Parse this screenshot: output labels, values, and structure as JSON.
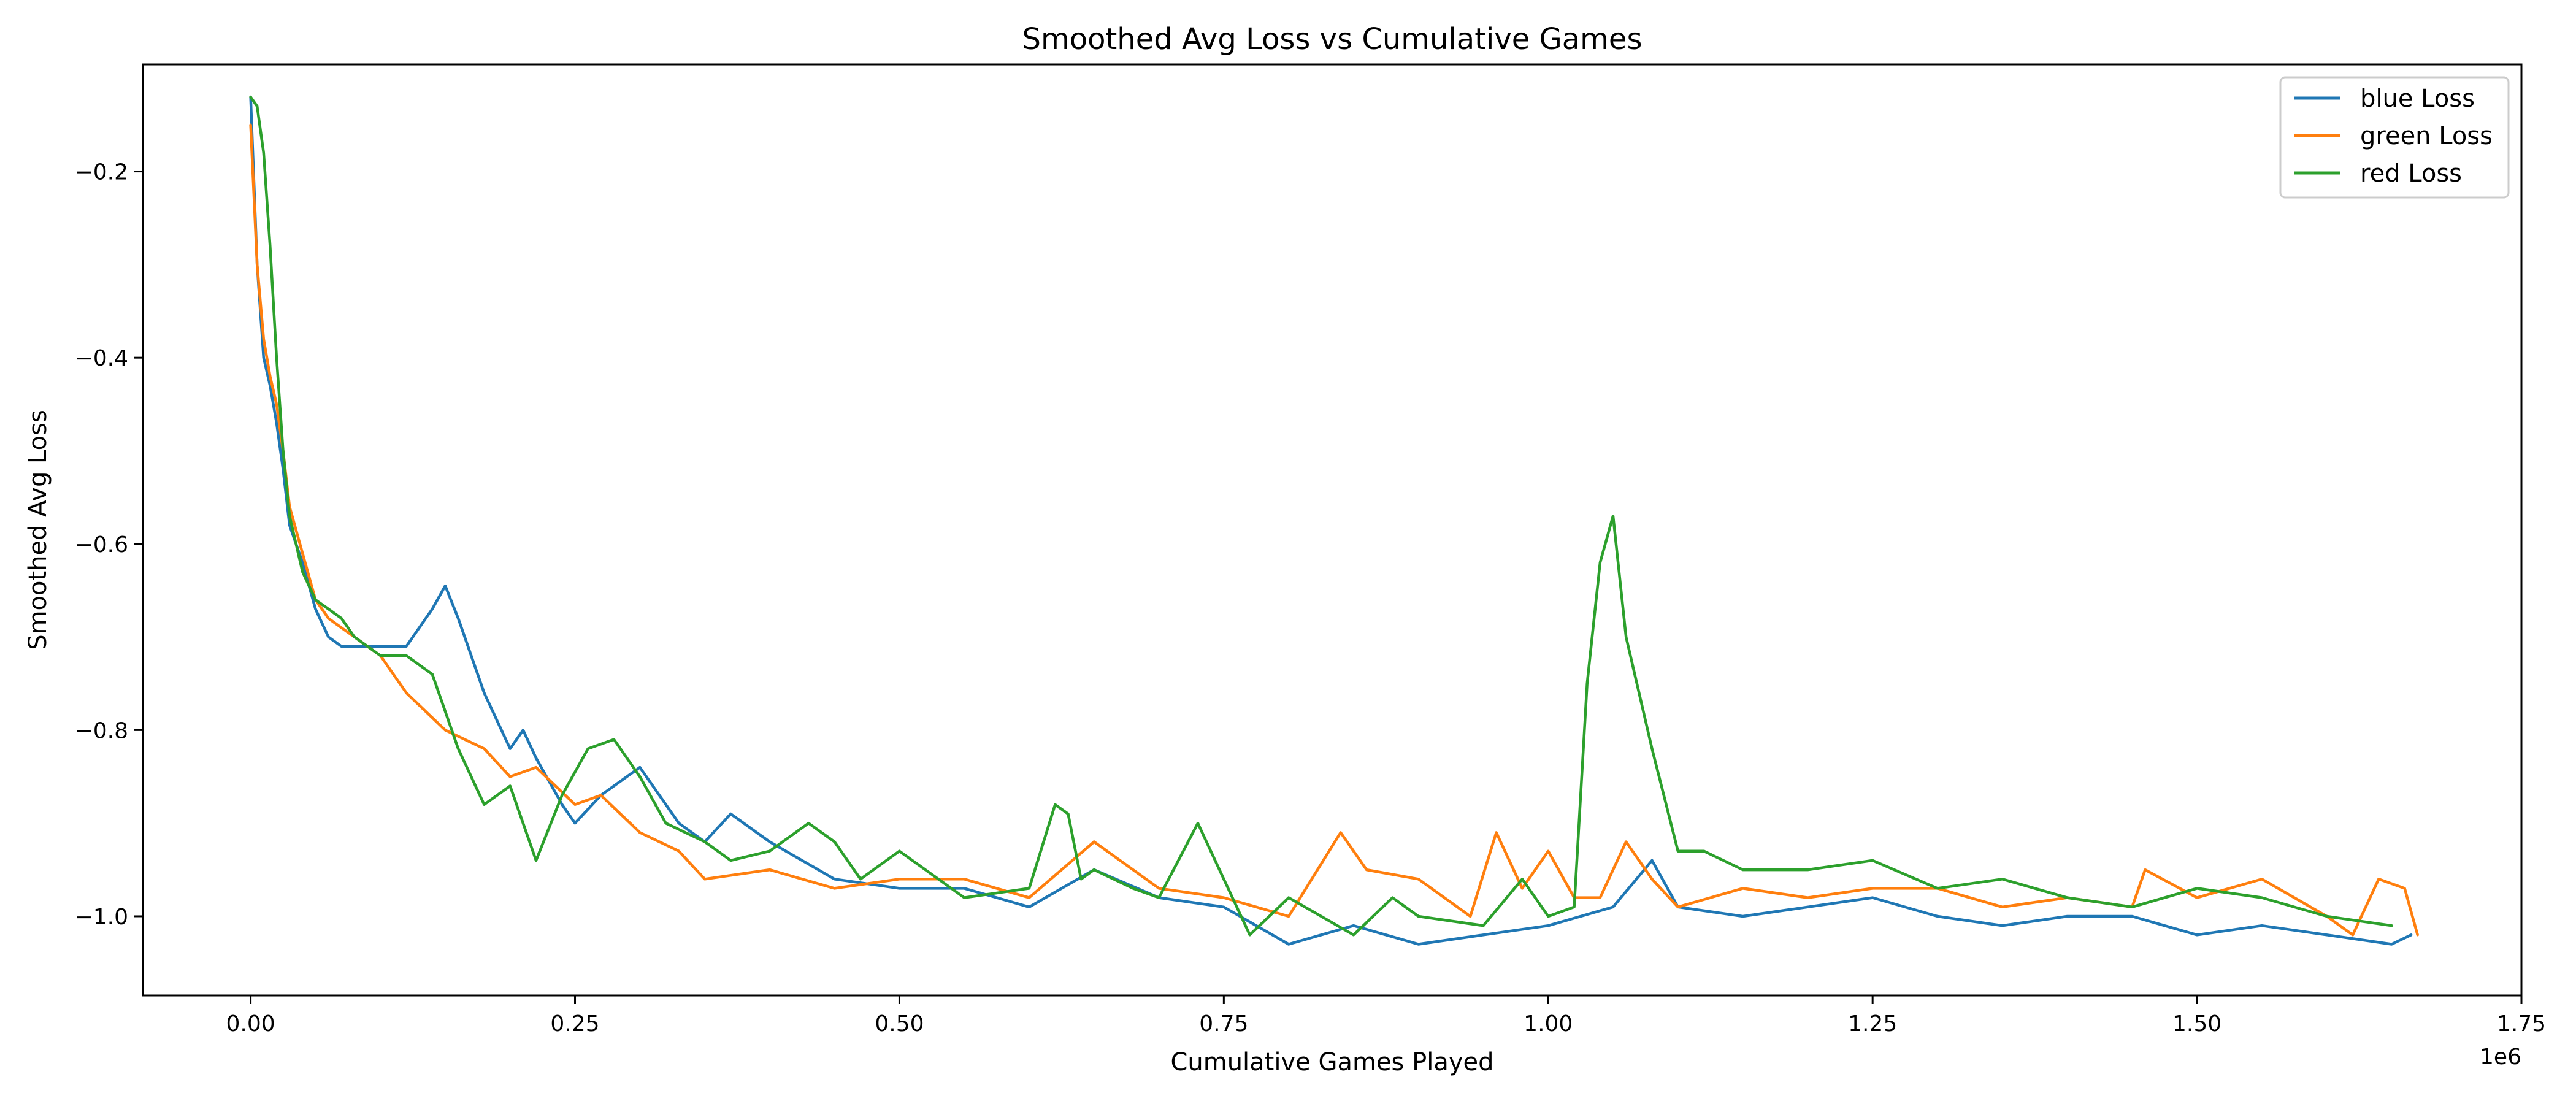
{
  "chart_data": {
    "type": "line",
    "title": "Smoothed Avg Loss vs Cumulative Games",
    "xlabel": "Cumulative Games Played",
    "ylabel": "Smoothed Avg Loss",
    "x_offset_label": "1e6",
    "xlim": [
      -0.083,
      1.75
    ],
    "ylim": [
      -1.085,
      -0.085
    ],
    "x_ticks": [
      0.0,
      0.25,
      0.5,
      0.75,
      1.0,
      1.25,
      1.5,
      1.75
    ],
    "x_tick_labels": [
      "0.00",
      "0.25",
      "0.50",
      "0.75",
      "1.00",
      "1.25",
      "1.50",
      "1.75"
    ],
    "y_ticks": [
      -0.2,
      -0.4,
      -0.6,
      -0.8,
      -1.0
    ],
    "y_tick_labels": [
      "−0.2",
      "−0.4",
      "−0.6",
      "−0.8",
      "−1.0"
    ],
    "grid": false,
    "legend_position": "top-right",
    "series": [
      {
        "name": "blue Loss",
        "color": "#1f77b4",
        "x": [
          0.0,
          0.005,
          0.01,
          0.015,
          0.02,
          0.025,
          0.03,
          0.04,
          0.05,
          0.06,
          0.07,
          0.08,
          0.1,
          0.12,
          0.13,
          0.14,
          0.15,
          0.16,
          0.18,
          0.2,
          0.21,
          0.22,
          0.24,
          0.25,
          0.27,
          0.3,
          0.33,
          0.35,
          0.37,
          0.4,
          0.45,
          0.5,
          0.55,
          0.6,
          0.65,
          0.7,
          0.75,
          0.8,
          0.85,
          0.9,
          0.95,
          1.0,
          1.05,
          1.08,
          1.1,
          1.15,
          1.2,
          1.25,
          1.3,
          1.35,
          1.4,
          1.45,
          1.5,
          1.55,
          1.6,
          1.65,
          1.665
        ],
        "y": [
          -0.12,
          -0.3,
          -0.4,
          -0.43,
          -0.47,
          -0.52,
          -0.58,
          -0.62,
          -0.67,
          -0.7,
          -0.71,
          -0.71,
          -0.71,
          -0.71,
          -0.69,
          -0.67,
          -0.645,
          -0.68,
          -0.76,
          -0.82,
          -0.8,
          -0.83,
          -0.88,
          -0.9,
          -0.87,
          -0.84,
          -0.9,
          -0.92,
          -0.89,
          -0.92,
          -0.96,
          -0.97,
          -0.97,
          -0.99,
          -0.95,
          -0.98,
          -0.99,
          -1.03,
          -1.01,
          -1.03,
          -1.02,
          -1.01,
          -0.99,
          -0.94,
          -0.99,
          -1.0,
          -0.99,
          -0.98,
          -1.0,
          -1.01,
          -1.0,
          -1.0,
          -1.02,
          -1.01,
          -1.02,
          -1.03,
          -1.02
        ]
      },
      {
        "name": "green Loss",
        "color": "#ff7f0e",
        "x": [
          0.0,
          0.005,
          0.01,
          0.015,
          0.02,
          0.025,
          0.03,
          0.04,
          0.05,
          0.06,
          0.07,
          0.08,
          0.1,
          0.12,
          0.15,
          0.18,
          0.2,
          0.22,
          0.25,
          0.27,
          0.3,
          0.33,
          0.35,
          0.4,
          0.45,
          0.5,
          0.55,
          0.6,
          0.65,
          0.7,
          0.75,
          0.8,
          0.84,
          0.86,
          0.9,
          0.94,
          0.96,
          0.98,
          1.0,
          1.02,
          1.04,
          1.06,
          1.08,
          1.1,
          1.15,
          1.2,
          1.25,
          1.3,
          1.35,
          1.4,
          1.45,
          1.46,
          1.5,
          1.55,
          1.6,
          1.62,
          1.64,
          1.66,
          1.67
        ],
        "y": [
          -0.15,
          -0.3,
          -0.38,
          -0.42,
          -0.45,
          -0.5,
          -0.56,
          -0.61,
          -0.66,
          -0.68,
          -0.69,
          -0.7,
          -0.72,
          -0.76,
          -0.8,
          -0.82,
          -0.85,
          -0.84,
          -0.88,
          -0.87,
          -0.91,
          -0.93,
          -0.96,
          -0.95,
          -0.97,
          -0.96,
          -0.96,
          -0.98,
          -0.92,
          -0.97,
          -0.98,
          -1.0,
          -0.91,
          -0.95,
          -0.96,
          -1.0,
          -0.91,
          -0.97,
          -0.93,
          -0.98,
          -0.98,
          -0.92,
          -0.96,
          -0.99,
          -0.97,
          -0.98,
          -0.97,
          -0.97,
          -0.99,
          -0.98,
          -0.99,
          -0.95,
          -0.98,
          -0.96,
          -1.0,
          -1.02,
          -0.96,
          -0.97,
          -1.02
        ]
      },
      {
        "name": "red Loss",
        "color": "#2ca02c",
        "x": [
          0.0,
          0.005,
          0.01,
          0.015,
          0.02,
          0.025,
          0.03,
          0.04,
          0.05,
          0.06,
          0.07,
          0.08,
          0.1,
          0.12,
          0.14,
          0.16,
          0.18,
          0.2,
          0.22,
          0.24,
          0.26,
          0.28,
          0.3,
          0.32,
          0.35,
          0.37,
          0.4,
          0.43,
          0.45,
          0.47,
          0.5,
          0.55,
          0.6,
          0.62,
          0.63,
          0.64,
          0.65,
          0.68,
          0.7,
          0.73,
          0.75,
          0.77,
          0.8,
          0.85,
          0.88,
          0.9,
          0.95,
          0.98,
          1.0,
          1.02,
          1.03,
          1.04,
          1.05,
          1.06,
          1.08,
          1.1,
          1.12,
          1.15,
          1.2,
          1.25,
          1.3,
          1.35,
          1.4,
          1.45,
          1.5,
          1.55,
          1.6,
          1.65
        ],
        "y": [
          -0.12,
          -0.13,
          -0.18,
          -0.28,
          -0.4,
          -0.5,
          -0.57,
          -0.63,
          -0.66,
          -0.67,
          -0.68,
          -0.7,
          -0.72,
          -0.72,
          -0.74,
          -0.82,
          -0.88,
          -0.86,
          -0.94,
          -0.87,
          -0.82,
          -0.81,
          -0.85,
          -0.9,
          -0.92,
          -0.94,
          -0.93,
          -0.9,
          -0.92,
          -0.96,
          -0.93,
          -0.98,
          -0.97,
          -0.88,
          -0.89,
          -0.96,
          -0.95,
          -0.97,
          -0.98,
          -0.9,
          -0.96,
          -1.02,
          -0.98,
          -1.02,
          -0.98,
          -1.0,
          -1.01,
          -0.96,
          -1.0,
          -0.99,
          -0.75,
          -0.62,
          -0.57,
          -0.7,
          -0.82,
          -0.93,
          -0.93,
          -0.95,
          -0.95,
          -0.94,
          -0.97,
          -0.96,
          -0.98,
          -0.99,
          -0.97,
          -0.98,
          -1.0,
          -1.01
        ]
      }
    ]
  }
}
